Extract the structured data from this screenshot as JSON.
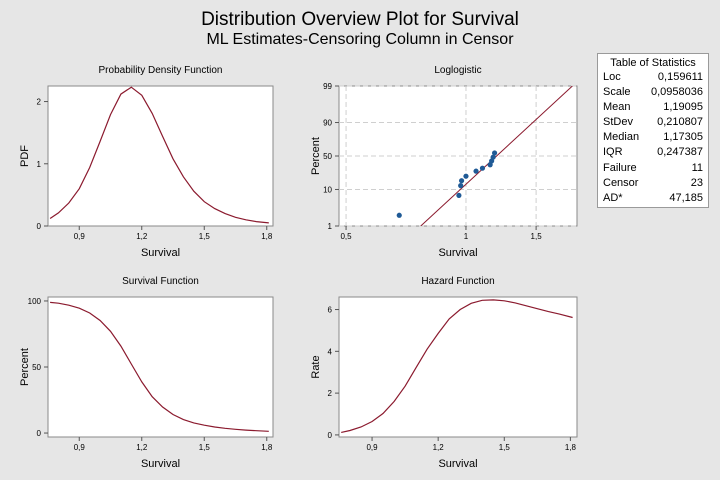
{
  "title": "Distribution Overview Plot for Survival",
  "subtitle": "ML Estimates-Censoring Column in Censor",
  "colors": {
    "curve": "#8b1a2e",
    "point": "#1f5a96",
    "fit_line": "#8b1a2e",
    "panel": "#ffffff",
    "background": "#e6e6e6"
  },
  "stats": {
    "title": "Table of Statistics",
    "rows": [
      {
        "label": "Loc",
        "value": "0,159611"
      },
      {
        "label": "Scale",
        "value": "0,0958036"
      },
      {
        "label": "Mean",
        "value": "1,19095"
      },
      {
        "label": "StDev",
        "value": "0,210807"
      },
      {
        "label": "Median",
        "value": "1,17305"
      },
      {
        "label": "IQR",
        "value": "0,247387"
      },
      {
        "label": "Failure",
        "value": "11"
      },
      {
        "label": "Censor",
        "value": "23"
      },
      {
        "label": "AD*",
        "value": "47,185"
      }
    ]
  },
  "chart_data": [
    {
      "type": "line",
      "title": "Probability Density Function",
      "xlabel": "Survival",
      "ylabel": "PDF",
      "xlim": [
        0.75,
        1.83
      ],
      "ylim": [
        0,
        2.25
      ],
      "xticks": [
        0.9,
        1.2,
        1.5,
        1.8
      ],
      "xtick_labels": [
        "0,9",
        "1,2",
        "1,5",
        "1,8"
      ],
      "yticks": [
        0,
        1,
        2
      ],
      "ytick_labels": [
        "0",
        "1",
        "2"
      ],
      "grid": false,
      "series": [
        {
          "x": [
            0.76,
            0.8,
            0.85,
            0.9,
            0.95,
            1.0,
            1.05,
            1.1,
            1.15,
            1.2,
            1.25,
            1.3,
            1.35,
            1.4,
            1.45,
            1.5,
            1.55,
            1.6,
            1.65,
            1.7,
            1.75,
            1.81
          ],
          "y": [
            0.12,
            0.21,
            0.37,
            0.6,
            0.94,
            1.36,
            1.79,
            2.12,
            2.23,
            2.1,
            1.81,
            1.44,
            1.08,
            0.79,
            0.56,
            0.39,
            0.28,
            0.2,
            0.14,
            0.1,
            0.07,
            0.05
          ]
        }
      ]
    },
    {
      "type": "scatter",
      "title": "Loglogistic",
      "xlabel": "Survival",
      "ylabel": "Percent",
      "xscale": "log",
      "yscale": "logit",
      "xlim": [
        0.48,
        1.9
      ],
      "ylim": [
        1,
        99
      ],
      "xticks": [
        0.5,
        1,
        1.5
      ],
      "xtick_labels": [
        "0,5",
        "1",
        "1,5"
      ],
      "yticks": [
        1,
        10,
        50,
        90,
        99
      ],
      "ytick_labels": [
        "1",
        "10",
        "50",
        "90",
        "99"
      ],
      "x_gridlines": [
        0.5,
        1,
        1.5
      ],
      "y_gridlines": [
        1,
        10,
        50,
        90,
        99
      ],
      "grid": true,
      "points": {
        "x": [
          0.68,
          0.96,
          0.97,
          0.975,
          1.0,
          1.06,
          1.1,
          1.15,
          1.16,
          1.17,
          1.18
        ],
        "y": [
          2.0,
          7.0,
          12.5,
          16.5,
          21.0,
          27.0,
          31.0,
          36.0,
          42.0,
          48.0,
          55.0
        ]
      },
      "fit_line": {
        "x": [
          0.77,
          1.85
        ],
        "y": [
          1,
          99
        ]
      }
    },
    {
      "type": "line",
      "title": "Survival Function",
      "xlabel": "Survival",
      "ylabel": "Percent",
      "xlim": [
        0.75,
        1.83
      ],
      "ylim": [
        -3,
        103
      ],
      "xticks": [
        0.9,
        1.2,
        1.5,
        1.8
      ],
      "xtick_labels": [
        "0,9",
        "1,2",
        "1,5",
        "1,8"
      ],
      "yticks": [
        0,
        50,
        100
      ],
      "ytick_labels": [
        "0",
        "50",
        "100"
      ],
      "grid": false,
      "series": [
        {
          "x": [
            0.76,
            0.8,
            0.85,
            0.9,
            0.95,
            1.0,
            1.05,
            1.1,
            1.15,
            1.2,
            1.25,
            1.3,
            1.35,
            1.4,
            1.45,
            1.5,
            1.55,
            1.6,
            1.65,
            1.7,
            1.75,
            1.81
          ],
          "y": [
            98.9,
            98.3,
            96.8,
            94.5,
            90.9,
            85.2,
            77.0,
            65.8,
            52.3,
            38.7,
            27.5,
            19.7,
            14.0,
            10.2,
            7.7,
            5.9,
            4.6,
            3.6,
            2.8,
            2.2,
            1.8,
            1.3
          ]
        }
      ]
    },
    {
      "type": "line",
      "title": "Hazard Function",
      "xlabel": "Survival",
      "ylabel": "Rate",
      "xlim": [
        0.75,
        1.83
      ],
      "ylim": [
        -0.1,
        6.6
      ],
      "xticks": [
        0.9,
        1.2,
        1.5,
        1.8
      ],
      "xtick_labels": [
        "0,9",
        "1,2",
        "1,5",
        "1,8"
      ],
      "yticks": [
        0,
        2,
        4,
        6
      ],
      "ytick_labels": [
        "0",
        "2",
        "4",
        "6"
      ],
      "grid": false,
      "series": [
        {
          "x": [
            0.76,
            0.8,
            0.85,
            0.9,
            0.95,
            1.0,
            1.05,
            1.1,
            1.15,
            1.2,
            1.25,
            1.3,
            1.35,
            1.4,
            1.45,
            1.5,
            1.55,
            1.6,
            1.65,
            1.7,
            1.75,
            1.81
          ],
          "y": [
            0.12,
            0.21,
            0.38,
            0.64,
            1.03,
            1.6,
            2.33,
            3.22,
            4.1,
            4.86,
            5.55,
            6.0,
            6.3,
            6.44,
            6.46,
            6.42,
            6.32,
            6.18,
            6.04,
            5.9,
            5.78,
            5.62
          ]
        }
      ]
    }
  ]
}
